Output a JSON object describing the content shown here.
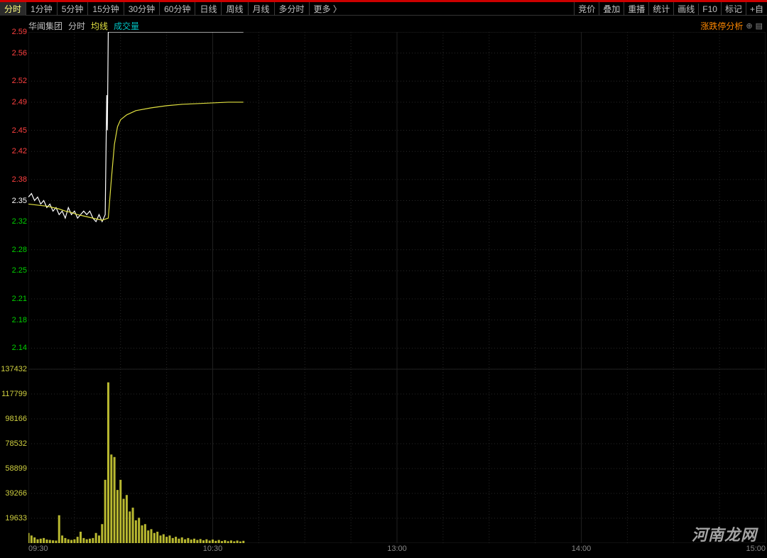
{
  "colors": {
    "bg": "#000000",
    "toolbar_text": "#c0c0c0",
    "active_text": "#ffff80",
    "border": "#3a3a3a",
    "red_bar": "#cc0000",
    "grid": "#202020",
    "grid_dash": "#282828",
    "price_line": "#ffffff",
    "ma_line": "#e0e040",
    "vol_bar": "#b8b830",
    "yaxis_up": "#ff4040",
    "yaxis_mid": "#ffffff",
    "yaxis_down": "#00d000",
    "yaxis_vol": "#d0d040",
    "xaxis": "#888888",
    "analysis": "#ff8800"
  },
  "timeframes": {
    "items": [
      "分时",
      "1分钟",
      "5分钟",
      "15分钟",
      "30分钟",
      "60分钟",
      "日线",
      "周线",
      "月线",
      "多分时"
    ],
    "more": "更多 〉",
    "active_index": 0
  },
  "tools": [
    "竞价",
    "叠加",
    "重播",
    "统计",
    "画线",
    "F10",
    "标记",
    "+自"
  ],
  "header": {
    "stock_name": "华闻集团",
    "timeframe": "分时",
    "ma_label": "均线",
    "vol_label": "成交量"
  },
  "analysis": {
    "text": "涨跌停分析",
    "icon_plus": "⊕",
    "icon_list": "▤"
  },
  "price_chart": {
    "ylim": [
      2.11,
      2.59
    ],
    "mid_value": 2.35,
    "y_ticks": [
      {
        "v": 2.59,
        "c": "#ff4040"
      },
      {
        "v": 2.56,
        "c": "#ff4040"
      },
      {
        "v": 2.52,
        "c": "#ff4040"
      },
      {
        "v": 2.49,
        "c": "#ff4040"
      },
      {
        "v": 2.45,
        "c": "#ff4040"
      },
      {
        "v": 2.42,
        "c": "#ff4040"
      },
      {
        "v": 2.38,
        "c": "#ff4040"
      },
      {
        "v": 2.35,
        "c": "#ffffff"
      },
      {
        "v": 2.32,
        "c": "#00d000"
      },
      {
        "v": 2.28,
        "c": "#00d000"
      },
      {
        "v": 2.25,
        "c": "#00d000"
      },
      {
        "v": 2.21,
        "c": "#00d000"
      },
      {
        "v": 2.18,
        "c": "#00d000"
      },
      {
        "v": 2.14,
        "c": "#00d000"
      }
    ],
    "x_range_minutes": 240,
    "x_ticks": [
      {
        "m": 0,
        "label": "09:30"
      },
      {
        "m": 60,
        "label": "10:30"
      },
      {
        "m": 120,
        "label": "13:00"
      },
      {
        "m": 180,
        "label": "14:00"
      },
      {
        "m": 240,
        "label": "15:00"
      }
    ],
    "vgrid_minor_step": 15,
    "price_series": [
      {
        "m": 0,
        "p": 2.355
      },
      {
        "m": 1,
        "p": 2.36
      },
      {
        "m": 2,
        "p": 2.35
      },
      {
        "m": 3,
        "p": 2.355
      },
      {
        "m": 4,
        "p": 2.345
      },
      {
        "m": 5,
        "p": 2.35
      },
      {
        "m": 6,
        "p": 2.34
      },
      {
        "m": 7,
        "p": 2.345
      },
      {
        "m": 8,
        "p": 2.335
      },
      {
        "m": 9,
        "p": 2.34
      },
      {
        "m": 10,
        "p": 2.33
      },
      {
        "m": 11,
        "p": 2.335
      },
      {
        "m": 12,
        "p": 2.325
      },
      {
        "m": 13,
        "p": 2.34
      },
      {
        "m": 14,
        "p": 2.33
      },
      {
        "m": 15,
        "p": 2.335
      },
      {
        "m": 16,
        "p": 2.325
      },
      {
        "m": 17,
        "p": 2.33
      },
      {
        "m": 18,
        "p": 2.335
      },
      {
        "m": 19,
        "p": 2.33
      },
      {
        "m": 20,
        "p": 2.335
      },
      {
        "m": 21,
        "p": 2.325
      },
      {
        "m": 22,
        "p": 2.32
      },
      {
        "m": 23,
        "p": 2.33
      },
      {
        "m": 24,
        "p": 2.32
      },
      {
        "m": 25,
        "p": 2.33
      },
      {
        "m": 25.5,
        "p": 2.5
      },
      {
        "m": 25.7,
        "p": 2.45
      },
      {
        "m": 26,
        "p": 2.59
      },
      {
        "m": 27,
        "p": 2.59
      },
      {
        "m": 70,
        "p": 2.59
      }
    ],
    "ma_series": [
      {
        "m": 0,
        "p": 2.345
      },
      {
        "m": 2,
        "p": 2.344
      },
      {
        "m": 4,
        "p": 2.343
      },
      {
        "m": 6,
        "p": 2.342
      },
      {
        "m": 8,
        "p": 2.34
      },
      {
        "m": 10,
        "p": 2.338
      },
      {
        "m": 12,
        "p": 2.335
      },
      {
        "m": 14,
        "p": 2.333
      },
      {
        "m": 16,
        "p": 2.33
      },
      {
        "m": 18,
        "p": 2.328
      },
      {
        "m": 20,
        "p": 2.326
      },
      {
        "m": 22,
        "p": 2.324
      },
      {
        "m": 24,
        "p": 2.322
      },
      {
        "m": 26,
        "p": 2.325
      },
      {
        "m": 27,
        "p": 2.38
      },
      {
        "m": 28,
        "p": 2.43
      },
      {
        "m": 29,
        "p": 2.455
      },
      {
        "m": 30,
        "p": 2.465
      },
      {
        "m": 32,
        "p": 2.472
      },
      {
        "m": 35,
        "p": 2.478
      },
      {
        "m": 40,
        "p": 2.482
      },
      {
        "m": 45,
        "p": 2.485
      },
      {
        "m": 50,
        "p": 2.487
      },
      {
        "m": 55,
        "p": 2.488
      },
      {
        "m": 60,
        "p": 2.489
      },
      {
        "m": 65,
        "p": 2.49
      },
      {
        "m": 70,
        "p": 2.49
      }
    ]
  },
  "volume_chart": {
    "ymax": 137432,
    "y_ticks": [
      137432,
      117799,
      98166,
      78532,
      58899,
      39266,
      19633
    ],
    "bars": [
      {
        "m": 0,
        "v": 8000
      },
      {
        "m": 1,
        "v": 6000
      },
      {
        "m": 2,
        "v": 4500
      },
      {
        "m": 3,
        "v": 3000
      },
      {
        "m": 4,
        "v": 3500
      },
      {
        "m": 5,
        "v": 4000
      },
      {
        "m": 6,
        "v": 2800
      },
      {
        "m": 7,
        "v": 2500
      },
      {
        "m": 8,
        "v": 2200
      },
      {
        "m": 9,
        "v": 2000
      },
      {
        "m": 10,
        "v": 22000
      },
      {
        "m": 11,
        "v": 6000
      },
      {
        "m": 12,
        "v": 4000
      },
      {
        "m": 13,
        "v": 3000
      },
      {
        "m": 14,
        "v": 2500
      },
      {
        "m": 15,
        "v": 3000
      },
      {
        "m": 16,
        "v": 5000
      },
      {
        "m": 17,
        "v": 9000
      },
      {
        "m": 18,
        "v": 4000
      },
      {
        "m": 19,
        "v": 3000
      },
      {
        "m": 20,
        "v": 3500
      },
      {
        "m": 21,
        "v": 4000
      },
      {
        "m": 22,
        "v": 8000
      },
      {
        "m": 23,
        "v": 6000
      },
      {
        "m": 24,
        "v": 15000
      },
      {
        "m": 25,
        "v": 50000
      },
      {
        "m": 26,
        "v": 127000
      },
      {
        "m": 27,
        "v": 70000
      },
      {
        "m": 28,
        "v": 68000
      },
      {
        "m": 29,
        "v": 42000
      },
      {
        "m": 30,
        "v": 50000
      },
      {
        "m": 31,
        "v": 35000
      },
      {
        "m": 32,
        "v": 38000
      },
      {
        "m": 33,
        "v": 25000
      },
      {
        "m": 34,
        "v": 28000
      },
      {
        "m": 35,
        "v": 18000
      },
      {
        "m": 36,
        "v": 20000
      },
      {
        "m": 37,
        "v": 14000
      },
      {
        "m": 38,
        "v": 15000
      },
      {
        "m": 39,
        "v": 10000
      },
      {
        "m": 40,
        "v": 11000
      },
      {
        "m": 41,
        "v": 8000
      },
      {
        "m": 42,
        "v": 9000
      },
      {
        "m": 43,
        "v": 6000
      },
      {
        "m": 44,
        "v": 7000
      },
      {
        "m": 45,
        "v": 5000
      },
      {
        "m": 46,
        "v": 6000
      },
      {
        "m": 47,
        "v": 4000
      },
      {
        "m": 48,
        "v": 5000
      },
      {
        "m": 49,
        "v": 3500
      },
      {
        "m": 50,
        "v": 4500
      },
      {
        "m": 51,
        "v": 3000
      },
      {
        "m": 52,
        "v": 4000
      },
      {
        "m": 53,
        "v": 2800
      },
      {
        "m": 54,
        "v": 3500
      },
      {
        "m": 55,
        "v": 2500
      },
      {
        "m": 56,
        "v": 3200
      },
      {
        "m": 57,
        "v": 2200
      },
      {
        "m": 58,
        "v": 3000
      },
      {
        "m": 59,
        "v": 2000
      },
      {
        "m": 60,
        "v": 2800
      },
      {
        "m": 61,
        "v": 1800
      },
      {
        "m": 62,
        "v": 2500
      },
      {
        "m": 63,
        "v": 1600
      },
      {
        "m": 64,
        "v": 2300
      },
      {
        "m": 65,
        "v": 1500
      },
      {
        "m": 66,
        "v": 2100
      },
      {
        "m": 67,
        "v": 1400
      },
      {
        "m": 68,
        "v": 2000
      },
      {
        "m": 69,
        "v": 1300
      },
      {
        "m": 70,
        "v": 1800
      }
    ]
  },
  "watermark": "河南龙网"
}
